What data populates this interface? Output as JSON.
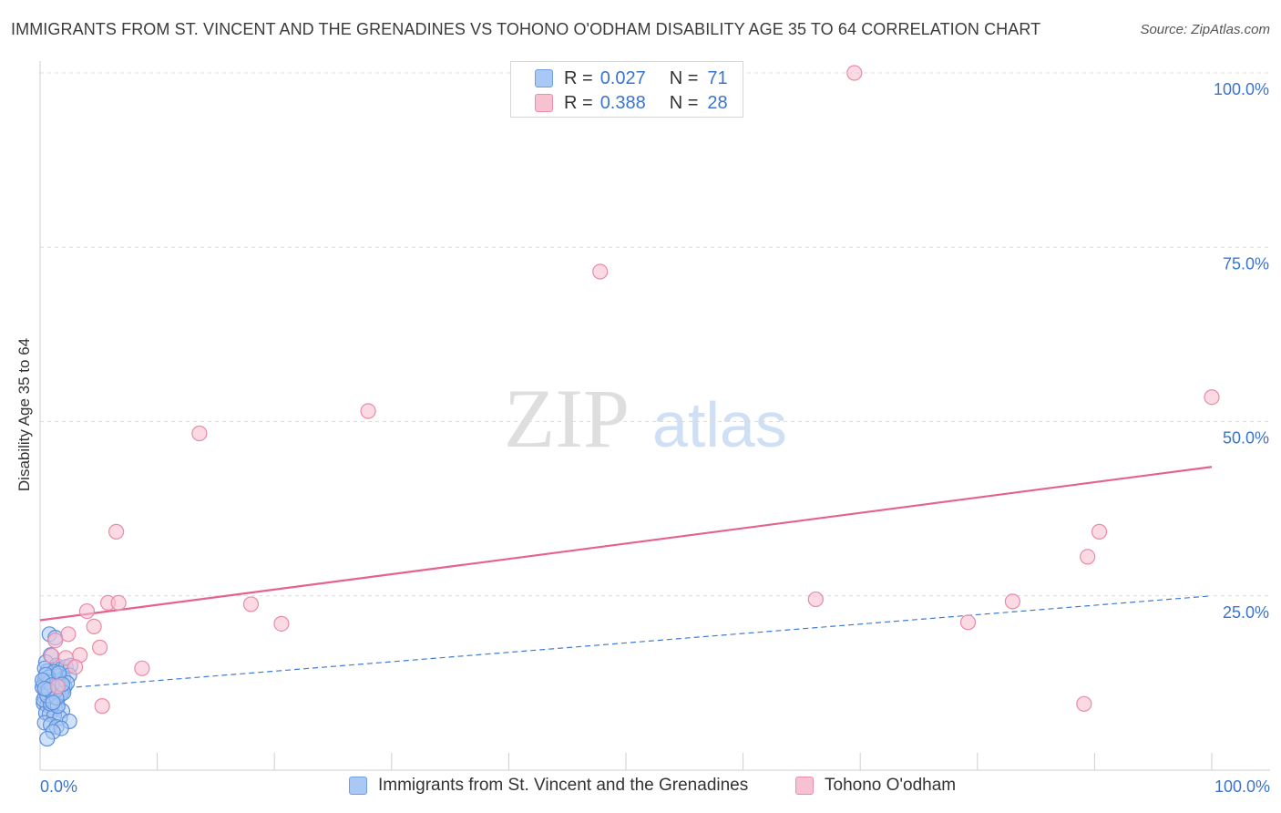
{
  "title": "IMMIGRANTS FROM ST. VINCENT AND THE GRENADINES VS TOHONO O'ODHAM DISABILITY AGE 35 TO 64 CORRELATION CHART",
  "source": "Source: ZipAtlas.com",
  "watermark": {
    "zip": "ZIP",
    "atlas": "atlas"
  },
  "legend_top": {
    "rows": [
      {
        "r_label": "R =",
        "r_value": "0.027",
        "n_label": "N =",
        "n_value": "71"
      },
      {
        "r_label": "R =",
        "r_value": "0.388",
        "n_label": "N =",
        "n_value": "28"
      }
    ]
  },
  "colors": {
    "blue_fill": "#a9c8f3",
    "blue_stroke": "#5d8fdb",
    "blue_line": "#3f7bd6",
    "pink_fill": "#f8c1d2",
    "pink_stroke": "#e88aa8",
    "pink_line": "#e4628c",
    "grid": "#dcdcdc",
    "tick_label": "#3a74d0"
  },
  "chart_data": {
    "type": "scatter",
    "title": "IMMIGRANTS FROM ST. VINCENT AND THE GRENADINES VS TOHONO O'ODHAM DISABILITY AGE 35 TO 64 CORRELATION CHART",
    "xlabel": "",
    "ylabel": "Disability Age 35 to 64",
    "xlim": [
      0,
      100
    ],
    "ylim": [
      0,
      100
    ],
    "x_tick_labels": [
      "0.0%",
      "100.0%"
    ],
    "y_ticks": [
      25,
      50,
      75,
      100
    ],
    "y_tick_labels": [
      "25.0%",
      "50.0%",
      "75.0%",
      "100.0%"
    ],
    "grid": true,
    "legend_position": "top-center",
    "series": [
      {
        "name": "Immigrants from St. Vincent and the Grenadines",
        "R": 0.027,
        "N": 71,
        "trend": {
          "style": "dashed",
          "x": [
            0,
            100
          ],
          "y": [
            11.5,
            25.0
          ]
        },
        "trend_solid_segment": {
          "x": [
            0,
            2.0
          ],
          "y": [
            11.5,
            11.8
          ]
        },
        "points": [
          [
            0.8,
            19.5
          ],
          [
            1.3,
            19.0
          ],
          [
            0.9,
            16.5
          ],
          [
            0.5,
            15.5
          ],
          [
            1.4,
            15.0
          ],
          [
            1.8,
            14.5
          ],
          [
            2.2,
            14.8
          ],
          [
            2.6,
            15.0
          ],
          [
            0.6,
            14.2
          ],
          [
            1.1,
            13.8
          ],
          [
            1.6,
            13.5
          ],
          [
            2.0,
            13.2
          ],
          [
            2.5,
            13.6
          ],
          [
            0.4,
            13.0
          ],
          [
            0.9,
            12.8
          ],
          [
            1.3,
            12.5
          ],
          [
            1.7,
            12.2
          ],
          [
            2.1,
            12.0
          ],
          [
            0.3,
            12.3
          ],
          [
            0.7,
            12.0
          ],
          [
            1.0,
            11.8
          ],
          [
            1.5,
            11.5
          ],
          [
            1.9,
            11.3
          ],
          [
            0.5,
            11.2
          ],
          [
            0.8,
            11.0
          ],
          [
            1.2,
            10.8
          ],
          [
            1.6,
            10.6
          ],
          [
            0.4,
            10.5
          ],
          [
            0.7,
            10.2
          ],
          [
            1.1,
            10.0
          ],
          [
            1.4,
            9.8
          ],
          [
            0.3,
            9.6
          ],
          [
            0.6,
            9.3
          ],
          [
            0.9,
            9.0
          ],
          [
            1.3,
            8.8
          ],
          [
            1.9,
            8.5
          ],
          [
            0.5,
            8.2
          ],
          [
            0.8,
            8.0
          ],
          [
            1.2,
            7.8
          ],
          [
            1.7,
            7.5
          ],
          [
            2.5,
            7.0
          ],
          [
            0.4,
            6.8
          ],
          [
            0.9,
            6.5
          ],
          [
            1.4,
            6.2
          ],
          [
            1.8,
            6.0
          ],
          [
            1.1,
            5.5
          ],
          [
            0.6,
            4.5
          ],
          [
            1.0,
            11.6
          ],
          [
            1.5,
            12.8
          ],
          [
            2.3,
            12.5
          ],
          [
            0.2,
            11.9
          ],
          [
            0.4,
            14.6
          ],
          [
            1.2,
            14.1
          ],
          [
            0.7,
            13.3
          ],
          [
            1.8,
            10.9
          ],
          [
            2.0,
            11.1
          ],
          [
            0.3,
            10.1
          ],
          [
            0.9,
            9.5
          ],
          [
            1.5,
            9.2
          ],
          [
            0.6,
            10.7
          ],
          [
            1.3,
            11.4
          ],
          [
            0.8,
            12.6
          ],
          [
            0.5,
            13.7
          ],
          [
            1.6,
            13.9
          ],
          [
            0.2,
            12.9
          ],
          [
            1.0,
            12.2
          ],
          [
            1.4,
            10.4
          ],
          [
            0.7,
            11.5
          ],
          [
            0.4,
            11.7
          ],
          [
            1.1,
            9.7
          ],
          [
            1.9,
            12.3
          ]
        ]
      },
      {
        "name": "Tohono O'odham",
        "R": 0.388,
        "N": 28,
        "trend": {
          "style": "solid",
          "x": [
            0,
            100
          ],
          "y": [
            21.5,
            43.5
          ]
        },
        "points": [
          [
            69.5,
            100.0
          ],
          [
            47.8,
            71.5
          ],
          [
            28.0,
            51.5
          ],
          [
            13.6,
            48.3
          ],
          [
            100.0,
            53.5
          ],
          [
            6.5,
            34.2
          ],
          [
            90.4,
            34.2
          ],
          [
            89.4,
            30.6
          ],
          [
            1.3,
            18.6
          ],
          [
            4.0,
            22.8
          ],
          [
            5.8,
            24.0
          ],
          [
            6.7,
            24.0
          ],
          [
            18.0,
            23.8
          ],
          [
            20.6,
            21.0
          ],
          [
            66.2,
            24.5
          ],
          [
            83.0,
            24.2
          ],
          [
            79.2,
            21.2
          ],
          [
            4.6,
            20.6
          ],
          [
            2.4,
            19.5
          ],
          [
            5.1,
            17.6
          ],
          [
            3.4,
            16.5
          ],
          [
            1.0,
            16.4
          ],
          [
            2.2,
            16.1
          ],
          [
            8.7,
            14.6
          ],
          [
            5.3,
            9.2
          ],
          [
            89.1,
            9.5
          ],
          [
            1.5,
            12.0
          ],
          [
            3.0,
            14.8
          ]
        ]
      }
    ]
  },
  "bottom_legend": {
    "items": [
      {
        "label": "Immigrants from St. Vincent and the Grenadines"
      },
      {
        "label": "Tohono O'odham"
      }
    ]
  }
}
